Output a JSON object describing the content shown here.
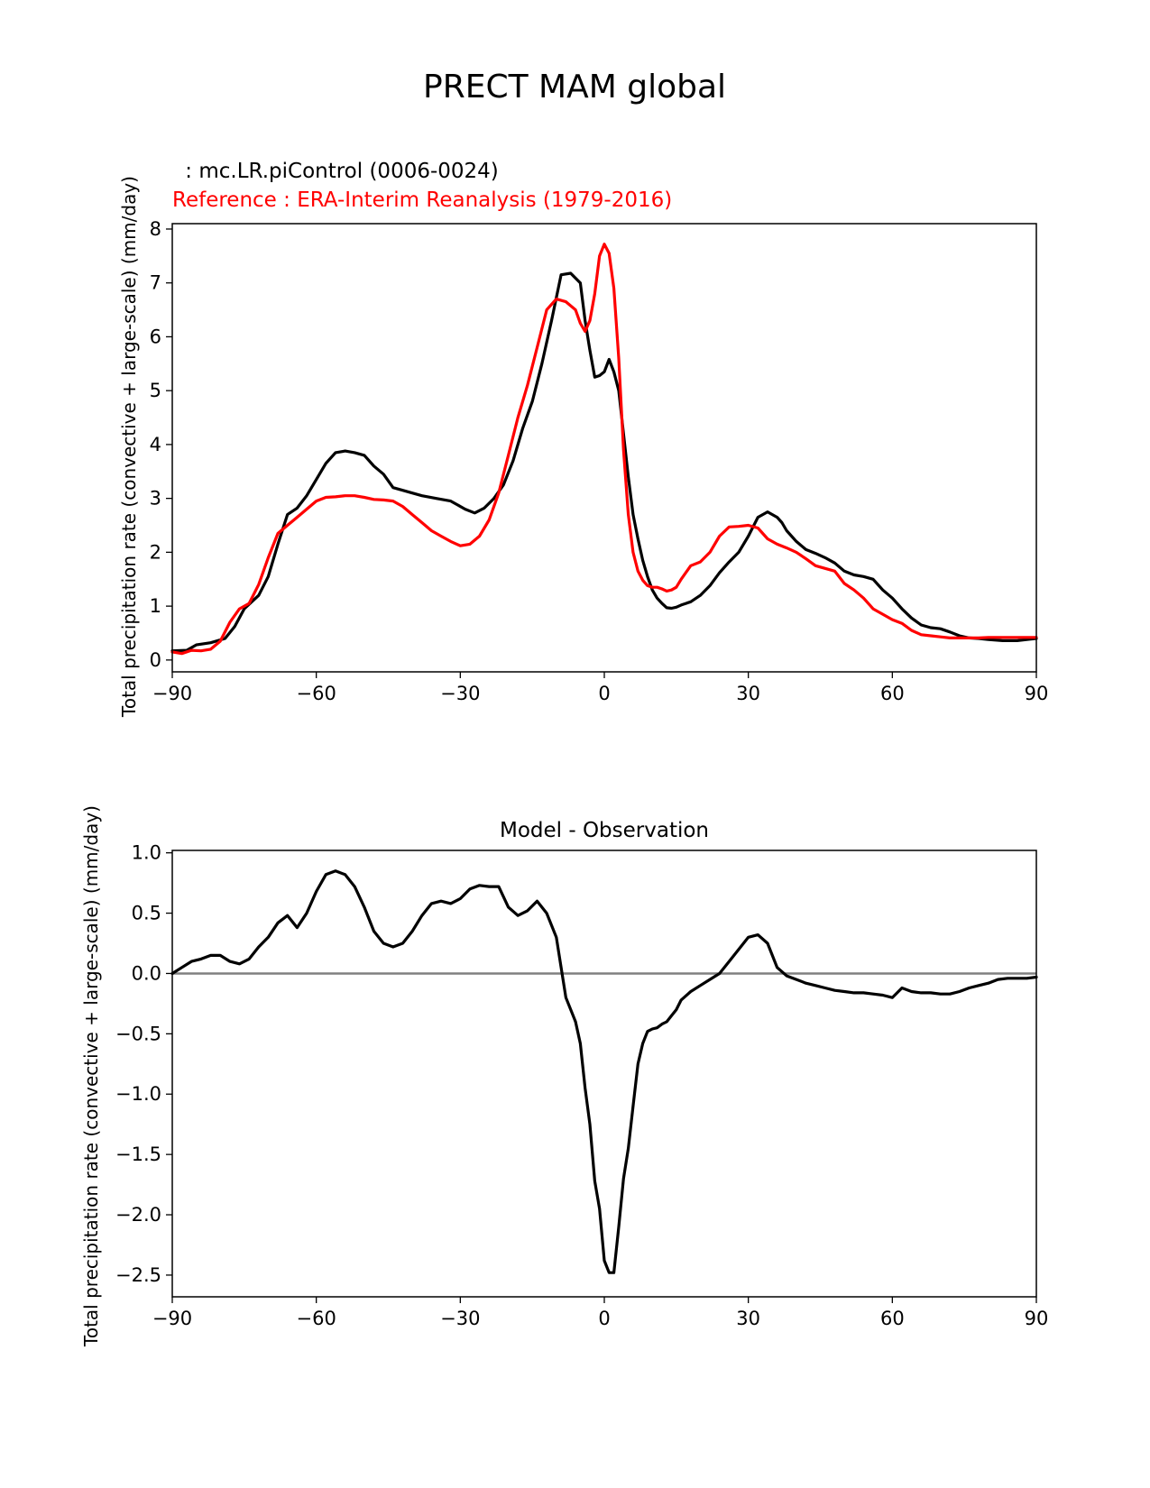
{
  "figure": {
    "title": "PRECT MAM global"
  },
  "chart_data": [
    {
      "type": "line",
      "title": "",
      "legend_model": " : mc.LR.piControl (0006-0024)",
      "legend_reference": "Reference : ERA-Interim Reanalysis (1979-2016)",
      "xlabel": "",
      "ylabel": "Total precipitation rate (convective + large-scale) (mm/day)",
      "xlim": [
        -90,
        90
      ],
      "ylim": [
        -0.22,
        8.1
      ],
      "xticks": [
        -90,
        -60,
        -30,
        0,
        30,
        60,
        90
      ],
      "xtick_labels": [
        "−90",
        "−60",
        "−30",
        "0",
        "30",
        "60",
        "90"
      ],
      "yticks": [
        0,
        1,
        2,
        3,
        4,
        5,
        6,
        7,
        8
      ],
      "ytick_labels": [
        "0",
        "1",
        "2",
        "3",
        "4",
        "5",
        "6",
        "7",
        "8"
      ],
      "series": [
        {
          "name": "mc.LR.piControl (0006-0024)",
          "color": "#000000",
          "x": [
            -90,
            -87,
            -85,
            -82,
            -79,
            -77,
            -75,
            -72,
            -70,
            -68,
            -66,
            -64,
            -62,
            -60,
            -58,
            -56,
            -54,
            -52,
            -50,
            -48,
            -46,
            -44,
            -42,
            -40,
            -38,
            -35,
            -32,
            -29,
            -27,
            -25,
            -23,
            -21,
            -19,
            -17,
            -15,
            -13,
            -11,
            -9,
            -7,
            -5,
            -4,
            -3,
            -2,
            -1,
            0,
            1,
            2,
            3,
            4,
            5,
            6,
            7,
            8,
            9,
            10,
            11,
            12,
            13,
            14,
            15,
            16,
            17,
            18,
            20,
            22,
            24,
            26,
            28,
            30,
            32,
            34,
            36,
            37,
            38,
            40,
            42,
            44,
            46,
            48,
            50,
            52,
            54,
            56,
            58,
            60,
            62,
            64,
            66,
            68,
            70,
            72,
            74,
            76,
            78,
            80,
            83,
            86,
            88,
            90
          ],
          "values": [
            0.17,
            0.18,
            0.28,
            0.32,
            0.4,
            0.62,
            0.95,
            1.2,
            1.55,
            2.15,
            2.7,
            2.82,
            3.05,
            3.35,
            3.65,
            3.85,
            3.88,
            3.85,
            3.8,
            3.6,
            3.45,
            3.2,
            3.15,
            3.1,
            3.05,
            3.0,
            2.95,
            2.8,
            2.73,
            2.82,
            3.0,
            3.25,
            3.7,
            4.3,
            4.8,
            5.5,
            6.3,
            7.15,
            7.18,
            7.0,
            6.3,
            5.75,
            5.25,
            5.28,
            5.35,
            5.58,
            5.35,
            5.0,
            4.2,
            3.4,
            2.7,
            2.25,
            1.85,
            1.55,
            1.3,
            1.15,
            1.05,
            0.97,
            0.96,
            0.98,
            1.02,
            1.05,
            1.08,
            1.2,
            1.38,
            1.62,
            1.82,
            2.0,
            2.3,
            2.65,
            2.75,
            2.65,
            2.55,
            2.4,
            2.2,
            2.05,
            1.98,
            1.9,
            1.8,
            1.65,
            1.58,
            1.55,
            1.5,
            1.3,
            1.15,
            0.95,
            0.78,
            0.65,
            0.6,
            0.58,
            0.52,
            0.45,
            0.41,
            0.4,
            0.38,
            0.36,
            0.36,
            0.38,
            0.4
          ]
        },
        {
          "name": "Reference : ERA-Interim Reanalysis (1979-2016)",
          "color": "#ff0000",
          "x": [
            -90,
            -88,
            -86,
            -84,
            -82,
            -80,
            -78,
            -76,
            -74,
            -72,
            -70,
            -68,
            -66,
            -64,
            -62,
            -60,
            -58,
            -56,
            -54,
            -52,
            -50,
            -48,
            -46,
            -44,
            -42,
            -40,
            -38,
            -36,
            -34,
            -32,
            -30,
            -28,
            -26,
            -24,
            -22,
            -20,
            -18,
            -16,
            -14,
            -12,
            -10,
            -8,
            -6,
            -5,
            -4,
            -3,
            -2,
            -1,
            0,
            1,
            2,
            3,
            4,
            5,
            6,
            7,
            8,
            9,
            10,
            11,
            12,
            13,
            14,
            15,
            16,
            18,
            20,
            22,
            24,
            26,
            28,
            30,
            32,
            34,
            36,
            38,
            40,
            42,
            44,
            46,
            48,
            50,
            52,
            54,
            56,
            58,
            60,
            62,
            64,
            66,
            68,
            70,
            72,
            74,
            76,
            78,
            80,
            84,
            88,
            90
          ],
          "values": [
            0.15,
            0.12,
            0.18,
            0.17,
            0.2,
            0.35,
            0.7,
            0.95,
            1.05,
            1.4,
            1.9,
            2.35,
            2.5,
            2.65,
            2.8,
            2.95,
            3.02,
            3.03,
            3.05,
            3.05,
            3.02,
            2.98,
            2.97,
            2.95,
            2.85,
            2.7,
            2.55,
            2.4,
            2.3,
            2.2,
            2.12,
            2.15,
            2.3,
            2.6,
            3.1,
            3.8,
            4.5,
            5.1,
            5.8,
            6.5,
            6.7,
            6.65,
            6.5,
            6.25,
            6.1,
            6.3,
            6.8,
            7.5,
            7.72,
            7.55,
            6.9,
            5.6,
            3.9,
            2.7,
            2.0,
            1.65,
            1.48,
            1.38,
            1.35,
            1.35,
            1.32,
            1.28,
            1.3,
            1.35,
            1.5,
            1.75,
            1.82,
            2.0,
            2.3,
            2.47,
            2.48,
            2.5,
            2.45,
            2.25,
            2.15,
            2.08,
            2.0,
            1.88,
            1.75,
            1.7,
            1.65,
            1.42,
            1.3,
            1.15,
            0.95,
            0.85,
            0.75,
            0.68,
            0.55,
            0.47,
            0.45,
            0.43,
            0.41,
            0.41,
            0.41,
            0.41,
            0.42,
            0.42,
            0.42,
            0.42
          ]
        }
      ]
    },
    {
      "type": "line",
      "title": "Model - Observation",
      "xlabel": "",
      "ylabel": "Total precipitation rate (convective + large-scale) (mm/day)",
      "xlim": [
        -90,
        90
      ],
      "ylim": [
        -2.68,
        1.02
      ],
      "xticks": [
        -90,
        -60,
        -30,
        0,
        30,
        60,
        90
      ],
      "xtick_labels": [
        "−90",
        "−60",
        "−30",
        "0",
        "30",
        "60",
        "90"
      ],
      "yticks": [
        1.0,
        0.5,
        0.0,
        -0.5,
        -1.0,
        -1.5,
        -2.0,
        -2.5
      ],
      "ytick_labels": [
        "1.0",
        "0.5",
        "0.0",
        "−0.5",
        "−1.0",
        "−1.5",
        "−2.0",
        "−2.5"
      ],
      "zero_line": {
        "value": 0.0,
        "color": "#808080"
      },
      "series": [
        {
          "name": "Model - Observation",
          "color": "#000000",
          "x": [
            -90,
            -88,
            -86,
            -84,
            -82,
            -80,
            -78,
            -76,
            -74,
            -72,
            -70,
            -68,
            -66,
            -64,
            -62,
            -60,
            -58,
            -56,
            -54,
            -52,
            -50,
            -48,
            -46,
            -44,
            -42,
            -40,
            -38,
            -36,
            -34,
            -32,
            -30,
            -28,
            -26,
            -24,
            -22,
            -20,
            -18,
            -16,
            -14,
            -12,
            -10,
            -8,
            -6,
            -5,
            -4,
            -3,
            -2,
            -1,
            0,
            1,
            2,
            3,
            4,
            5,
            6,
            7,
            8,
            9,
            10,
            11,
            12,
            13,
            14,
            15,
            16,
            18,
            20,
            22,
            24,
            26,
            28,
            30,
            32,
            34,
            36,
            38,
            40,
            42,
            44,
            46,
            48,
            50,
            52,
            54,
            56,
            58,
            60,
            62,
            64,
            66,
            68,
            70,
            72,
            74,
            76,
            78,
            80,
            82,
            84,
            86,
            88,
            90
          ],
          "values": [
            0.0,
            0.05,
            0.1,
            0.12,
            0.15,
            0.15,
            0.1,
            0.08,
            0.12,
            0.22,
            0.3,
            0.42,
            0.48,
            0.38,
            0.5,
            0.68,
            0.82,
            0.85,
            0.82,
            0.72,
            0.55,
            0.35,
            0.25,
            0.22,
            0.25,
            0.35,
            0.48,
            0.58,
            0.6,
            0.58,
            0.62,
            0.7,
            0.73,
            0.72,
            0.72,
            0.55,
            0.48,
            0.52,
            0.6,
            0.5,
            0.3,
            -0.2,
            -0.4,
            -0.58,
            -0.95,
            -1.25,
            -1.72,
            -1.95,
            -2.38,
            -2.48,
            -2.48,
            -2.1,
            -1.7,
            -1.45,
            -1.1,
            -0.75,
            -0.58,
            -0.48,
            -0.46,
            -0.45,
            -0.42,
            -0.4,
            -0.35,
            -0.3,
            -0.22,
            -0.15,
            -0.1,
            -0.05,
            0.0,
            0.1,
            0.2,
            0.3,
            0.32,
            0.25,
            0.05,
            -0.02,
            -0.05,
            -0.08,
            -0.1,
            -0.12,
            -0.14,
            -0.15,
            -0.16,
            -0.16,
            -0.17,
            -0.18,
            -0.2,
            -0.12,
            -0.15,
            -0.16,
            -0.16,
            -0.17,
            -0.17,
            -0.15,
            -0.12,
            -0.1,
            -0.08,
            -0.05,
            -0.04,
            -0.04,
            -0.04,
            -0.03
          ]
        }
      ]
    }
  ]
}
